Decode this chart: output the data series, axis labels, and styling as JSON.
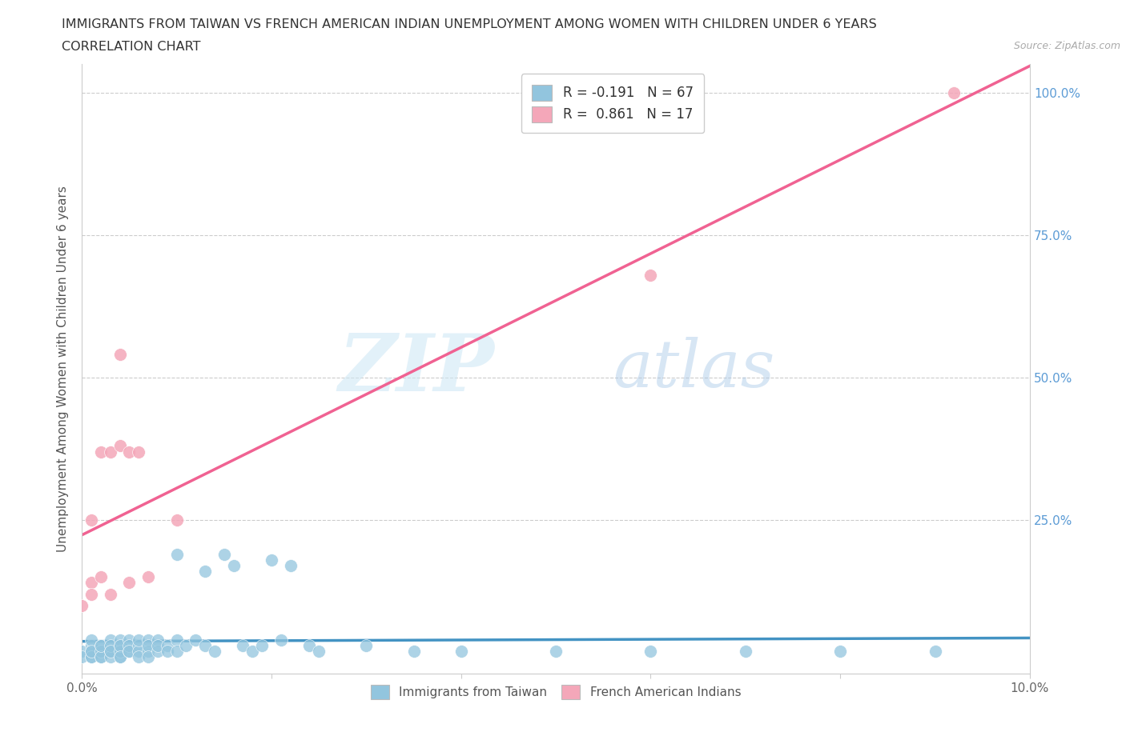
{
  "title_line1": "IMMIGRANTS FROM TAIWAN VS FRENCH AMERICAN INDIAN UNEMPLOYMENT AMONG WOMEN WITH CHILDREN UNDER 6 YEARS",
  "title_line2": "CORRELATION CHART",
  "source": "Source: ZipAtlas.com",
  "ylabel": "Unemployment Among Women with Children Under 6 years",
  "xmin": 0.0,
  "xmax": 0.1,
  "ymin": -0.02,
  "ymax": 1.05,
  "xticks": [
    0.0,
    0.02,
    0.04,
    0.06,
    0.08,
    0.1
  ],
  "xticklabels": [
    "0.0%",
    "",
    "",
    "",
    "",
    "10.0%"
  ],
  "yticks": [
    0.0,
    0.25,
    0.5,
    0.75,
    1.0
  ],
  "yticklabels_right": [
    "",
    "25.0%",
    "50.0%",
    "75.0%",
    "100.0%"
  ],
  "taiwan_R": -0.191,
  "taiwan_N": 67,
  "french_R": 0.861,
  "french_N": 17,
  "taiwan_color": "#92c5de",
  "french_color": "#f4a7b9",
  "taiwan_line_color": "#4393c3",
  "french_line_color": "#f06292",
  "watermark_zip": "ZIP",
  "watermark_atlas": "atlas",
  "taiwan_x": [
    0.0,
    0.0,
    0.001,
    0.001,
    0.001,
    0.001,
    0.001,
    0.001,
    0.002,
    0.002,
    0.002,
    0.002,
    0.002,
    0.003,
    0.003,
    0.003,
    0.003,
    0.003,
    0.004,
    0.004,
    0.004,
    0.004,
    0.004,
    0.004,
    0.005,
    0.005,
    0.005,
    0.005,
    0.006,
    0.006,
    0.006,
    0.006,
    0.007,
    0.007,
    0.007,
    0.007,
    0.008,
    0.008,
    0.008,
    0.009,
    0.009,
    0.01,
    0.01,
    0.01,
    0.011,
    0.012,
    0.013,
    0.013,
    0.014,
    0.015,
    0.016,
    0.017,
    0.018,
    0.019,
    0.02,
    0.021,
    0.022,
    0.024,
    0.025,
    0.03,
    0.035,
    0.04,
    0.05,
    0.06,
    0.07,
    0.08,
    0.09
  ],
  "taiwan_y": [
    0.02,
    0.01,
    0.03,
    0.01,
    0.02,
    0.04,
    0.01,
    0.02,
    0.03,
    0.01,
    0.02,
    0.01,
    0.03,
    0.02,
    0.04,
    0.01,
    0.03,
    0.02,
    0.03,
    0.01,
    0.04,
    0.02,
    0.03,
    0.01,
    0.02,
    0.04,
    0.03,
    0.02,
    0.03,
    0.02,
    0.04,
    0.01,
    0.04,
    0.02,
    0.03,
    0.01,
    0.04,
    0.02,
    0.03,
    0.03,
    0.02,
    0.19,
    0.04,
    0.02,
    0.03,
    0.04,
    0.16,
    0.03,
    0.02,
    0.19,
    0.17,
    0.03,
    0.02,
    0.03,
    0.18,
    0.04,
    0.17,
    0.03,
    0.02,
    0.03,
    0.02,
    0.02,
    0.02,
    0.02,
    0.02,
    0.02,
    0.02
  ],
  "french_x": [
    0.0,
    0.001,
    0.001,
    0.001,
    0.002,
    0.002,
    0.003,
    0.003,
    0.004,
    0.004,
    0.005,
    0.005,
    0.006,
    0.007,
    0.01,
    0.06,
    0.092
  ],
  "french_y": [
    0.1,
    0.14,
    0.25,
    0.12,
    0.15,
    0.37,
    0.12,
    0.37,
    0.54,
    0.38,
    0.37,
    0.14,
    0.37,
    0.15,
    0.25,
    0.68,
    1.0
  ]
}
